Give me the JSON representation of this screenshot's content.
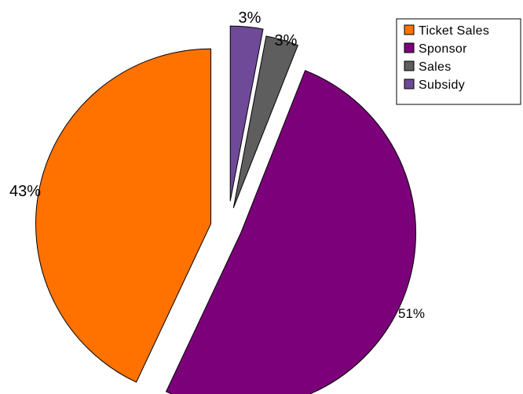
{
  "chart_data": {
    "type": "pie",
    "title": "",
    "categories": [
      "Ticket Sales",
      "Sponsor",
      "Sales",
      "Subsidy"
    ],
    "values": [
      43,
      51,
      3,
      3
    ],
    "labels": [
      "43%",
      "51%",
      "3%",
      "3%"
    ],
    "colors": [
      "#ff7200",
      "#7b0079",
      "#5e5e5e",
      "#6f4a98"
    ],
    "exploded": true,
    "legend_position": "top-right"
  }
}
